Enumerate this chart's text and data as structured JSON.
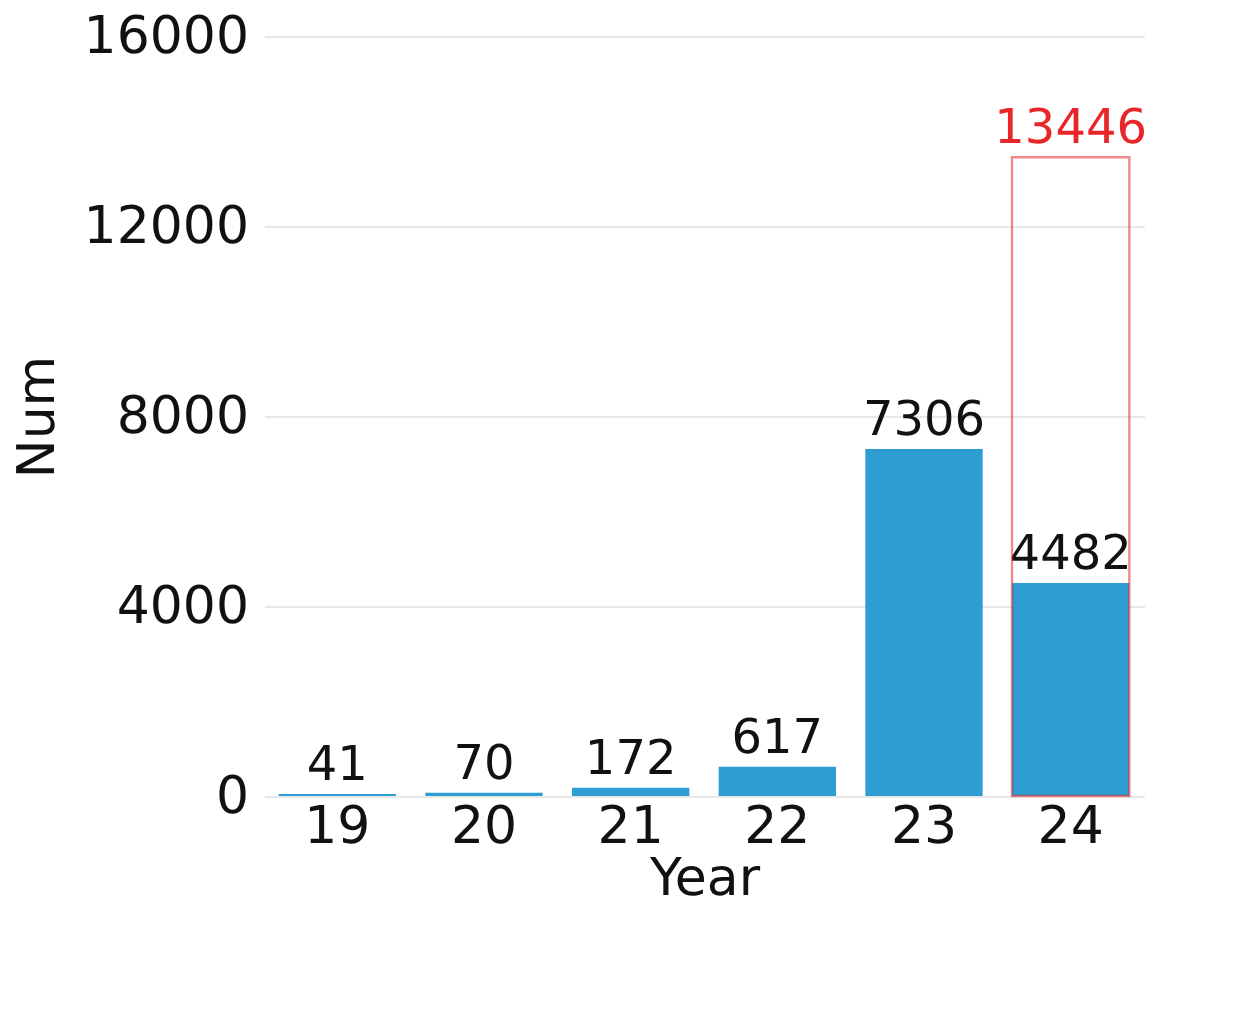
{
  "chart_data": {
    "type": "bar",
    "xlabel": "Year",
    "ylabel": "Num",
    "categories": [
      "19",
      "20",
      "21",
      "22",
      "23",
      "24"
    ],
    "series": [
      {
        "color": "#2e9dd2",
        "values": [
          41,
          70,
          172,
          617,
          7306,
          4482
        ]
      },
      {
        "color": "#e8262a",
        "line_style": "solid",
        "values": [
          null,
          null,
          null,
          null,
          null,
          13446
        ]
      }
    ],
    "ylim": [
      0,
      16000
    ],
    "yticks": [
      0,
      4000,
      8000,
      12000,
      16000
    ],
    "grid": "y",
    "data_labels": true
  }
}
